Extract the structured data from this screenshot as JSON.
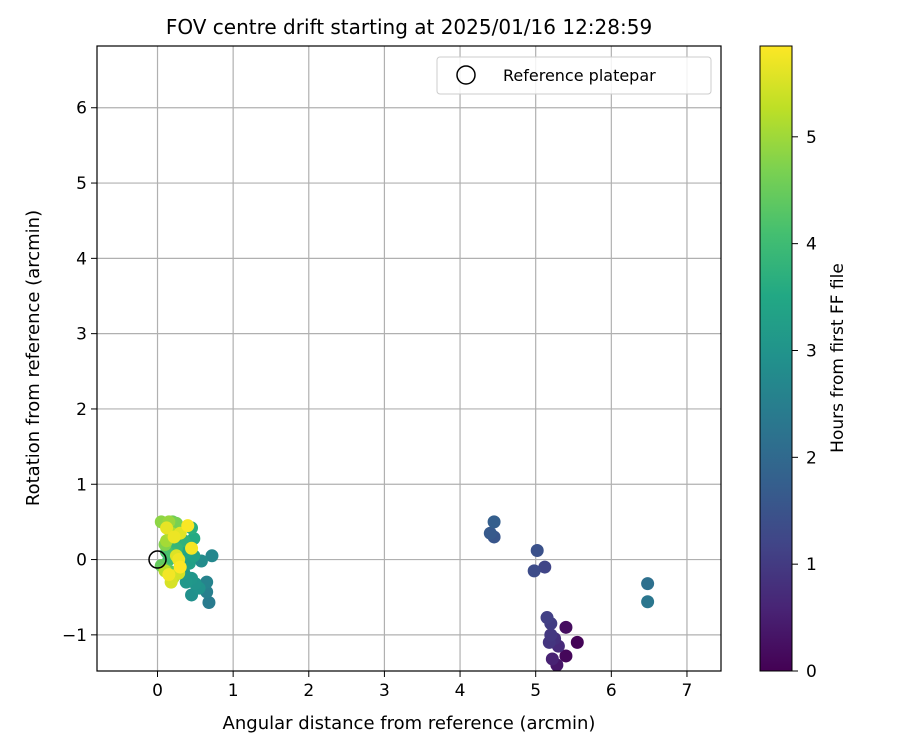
{
  "chart_data": {
    "type": "scatter",
    "title": "FOV centre drift starting at 2025/01/16 12:28:59",
    "xlabel": "Angular distance from reference (arcmin)",
    "ylabel": "Rotation from reference (arcmin)",
    "xlim": [
      -0.8,
      7.45
    ],
    "ylim": [
      -1.48,
      6.82
    ],
    "xticks": [
      0,
      1,
      2,
      3,
      4,
      5,
      6,
      7
    ],
    "yticks": [
      -1,
      0,
      1,
      2,
      3,
      4,
      5,
      6
    ],
    "grid": true,
    "legend": {
      "placement": "top-right",
      "entries": [
        "Reference platepar"
      ]
    },
    "reference_point": {
      "name": "Reference platepar",
      "x": 0,
      "y": 0
    },
    "colorbar": {
      "label": "Hours from first FF file",
      "colormap": "viridis",
      "range": [
        0,
        5.85
      ],
      "ticks": [
        0,
        1,
        2,
        3,
        4,
        5
      ]
    },
    "points": [
      {
        "x": 5.55,
        "y": -1.1,
        "h": 0.05
      },
      {
        "x": 5.4,
        "y": -1.28,
        "h": 0.1
      },
      {
        "x": 5.4,
        "y": -0.9,
        "h": 0.2
      },
      {
        "x": 5.28,
        "y": -1.4,
        "h": 0.35
      },
      {
        "x": 5.22,
        "y": -1.32,
        "h": 0.55
      },
      {
        "x": 5.3,
        "y": -1.15,
        "h": 0.7
      },
      {
        "x": 5.25,
        "y": -1.05,
        "h": 0.8
      },
      {
        "x": 5.18,
        "y": -1.1,
        "h": 0.9
      },
      {
        "x": 5.2,
        "y": -1.0,
        "h": 0.95
      },
      {
        "x": 5.2,
        "y": -0.85,
        "h": 1.05
      },
      {
        "x": 5.15,
        "y": -0.77,
        "h": 1.1
      },
      {
        "x": 5.12,
        "y": -0.1,
        "h": 1.2
      },
      {
        "x": 4.98,
        "y": -0.15,
        "h": 1.35
      },
      {
        "x": 5.02,
        "y": 0.12,
        "h": 1.45
      },
      {
        "x": 4.45,
        "y": 0.3,
        "h": 1.55
      },
      {
        "x": 4.4,
        "y": 0.35,
        "h": 1.65
      },
      {
        "x": 4.45,
        "y": 0.5,
        "h": 1.75
      },
      {
        "x": 6.48,
        "y": -0.32,
        "h": 2.15
      },
      {
        "x": 6.48,
        "y": -0.56,
        "h": 2.3
      },
      {
        "x": 0.68,
        "y": -0.57,
        "h": 2.4
      },
      {
        "x": 0.65,
        "y": -0.43,
        "h": 2.5
      },
      {
        "x": 0.65,
        "y": -0.3,
        "h": 2.6
      },
      {
        "x": 0.72,
        "y": 0.05,
        "h": 2.7
      },
      {
        "x": 0.58,
        "y": -0.02,
        "h": 2.8
      },
      {
        "x": 0.45,
        "y": -0.47,
        "h": 2.9
      },
      {
        "x": 0.55,
        "y": -0.38,
        "h": 2.95
      },
      {
        "x": 0.5,
        "y": -0.32,
        "h": 3.0
      },
      {
        "x": 0.45,
        "y": -0.25,
        "h": 3.05
      },
      {
        "x": 0.38,
        "y": -0.3,
        "h": 3.1
      },
      {
        "x": 0.35,
        "y": -0.18,
        "h": 3.15
      },
      {
        "x": 0.3,
        "y": -0.1,
        "h": 3.25
      },
      {
        "x": 0.42,
        "y": -0.05,
        "h": 3.3
      },
      {
        "x": 0.48,
        "y": 0.05,
        "h": 3.35
      },
      {
        "x": 0.38,
        "y": 0.1,
        "h": 3.45
      },
      {
        "x": 0.48,
        "y": 0.28,
        "h": 3.55
      },
      {
        "x": 0.45,
        "y": 0.42,
        "h": 3.65
      },
      {
        "x": 0.35,
        "y": 0.25,
        "h": 3.75
      },
      {
        "x": 0.25,
        "y": 0.15,
        "h": 3.85
      },
      {
        "x": 0.2,
        "y": 0.08,
        "h": 3.95
      },
      {
        "x": 0.15,
        "y": 0.0,
        "h": 4.05
      },
      {
        "x": 0.12,
        "y": 0.1,
        "h": 4.15
      },
      {
        "x": 0.22,
        "y": -0.22,
        "h": 4.25
      },
      {
        "x": 0.15,
        "y": -0.15,
        "h": 4.35
      },
      {
        "x": 0.05,
        "y": -0.08,
        "h": 4.45
      },
      {
        "x": 0.2,
        "y": 0.5,
        "h": 4.55
      },
      {
        "x": 0.25,
        "y": 0.48,
        "h": 4.65
      },
      {
        "x": 0.1,
        "y": 0.2,
        "h": 4.75
      },
      {
        "x": 0.05,
        "y": 0.5,
        "h": 4.85
      },
      {
        "x": 0.15,
        "y": 0.5,
        "h": 4.95
      },
      {
        "x": 0.12,
        "y": 0.25,
        "h": 5.05
      },
      {
        "x": 0.18,
        "y": 0.35,
        "h": 5.15
      },
      {
        "x": 0.1,
        "y": -0.15,
        "h": 5.25
      },
      {
        "x": 0.2,
        "y": -0.25,
        "h": 5.35
      },
      {
        "x": 0.28,
        "y": -0.18,
        "h": 5.45
      },
      {
        "x": 0.18,
        "y": -0.3,
        "h": 5.5
      },
      {
        "x": 0.25,
        "y": 0.05,
        "h": 5.55
      },
      {
        "x": 0.3,
        "y": 0.35,
        "h": 5.6
      },
      {
        "x": 0.12,
        "y": 0.42,
        "h": 5.65
      },
      {
        "x": 0.22,
        "y": 0.3,
        "h": 5.7
      },
      {
        "x": 0.28,
        "y": 0.0,
        "h": 5.72
      },
      {
        "x": 0.15,
        "y": -0.2,
        "h": 5.75
      },
      {
        "x": 0.45,
        "y": 0.15,
        "h": 5.78
      },
      {
        "x": 0.4,
        "y": 0.45,
        "h": 5.82
      },
      {
        "x": 0.3,
        "y": -0.1,
        "h": 5.85
      }
    ]
  }
}
